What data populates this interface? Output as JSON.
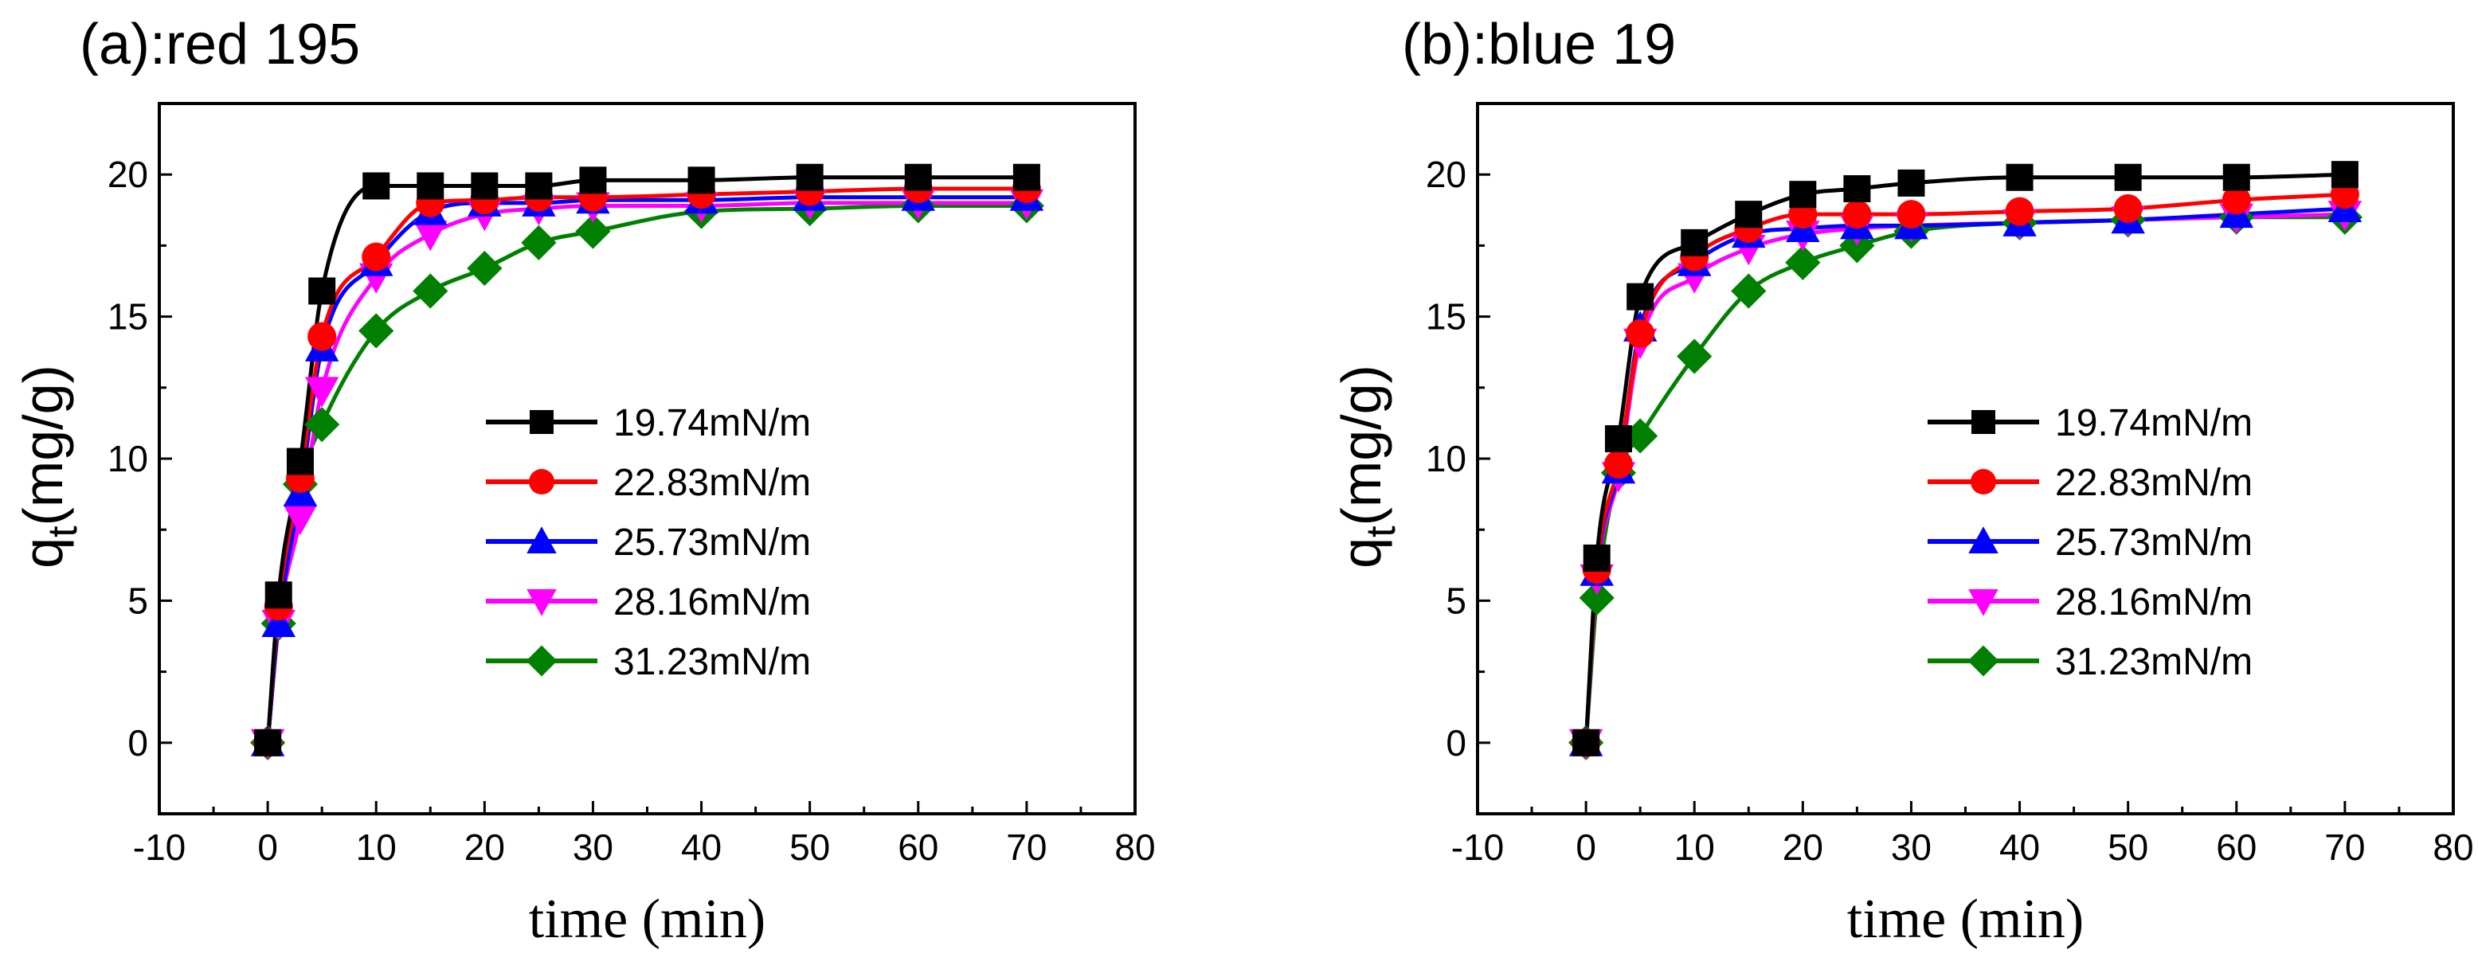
{
  "chart_data": [
    {
      "type": "line",
      "title": "(a):red 195",
      "xlabel": "time (min)",
      "ylabel": {
        "main": "q",
        "subscript": "t",
        "unit": "(mg/g)"
      },
      "xlim": [
        -10,
        80
      ],
      "ylim": [
        -2.5,
        22.5
      ],
      "xticks": [
        -10,
        0,
        10,
        20,
        30,
        40,
        50,
        60,
        70,
        80
      ],
      "yticks": [
        0,
        5,
        10,
        15,
        20
      ],
      "legend_position": "center-right",
      "x": [
        0,
        1,
        3,
        5,
        10,
        15,
        20,
        25,
        30,
        40,
        50,
        60,
        70
      ],
      "series": [
        {
          "name": "19.74mN/m",
          "color": "#000000",
          "marker": "square",
          "values": [
            0,
            5.2,
            9.9,
            15.9,
            19.6,
            19.6,
            19.6,
            19.6,
            19.8,
            19.8,
            19.9,
            19.9,
            19.9
          ]
        },
        {
          "name": "22.83mN/m",
          "color": "#ff0000",
          "marker": "circle",
          "values": [
            0,
            4.8,
            9.3,
            14.3,
            17.1,
            19.0,
            19.1,
            19.2,
            19.2,
            19.3,
            19.4,
            19.5,
            19.5
          ]
        },
        {
          "name": "25.73mN/m",
          "color": "#0000ff",
          "marker": "triangle-up",
          "values": [
            0,
            4.2,
            8.8,
            13.9,
            16.9,
            18.7,
            19.0,
            19.0,
            19.1,
            19.1,
            19.2,
            19.2,
            19.2
          ]
        },
        {
          "name": "28.16mN/m",
          "color": "#ff00ff",
          "marker": "triangle-down",
          "values": [
            0,
            4.2,
            7.9,
            12.4,
            16.4,
            17.9,
            18.6,
            18.8,
            18.9,
            18.9,
            19.0,
            19.0,
            19.0
          ]
        },
        {
          "name": "31.23mN/m",
          "color": "#008000",
          "marker": "diamond",
          "values": [
            0,
            4.2,
            9.1,
            11.2,
            14.5,
            15.9,
            16.7,
            17.6,
            18.0,
            18.7,
            18.8,
            18.9,
            18.9
          ]
        }
      ]
    },
    {
      "type": "line",
      "title": "(b):blue 19",
      "xlabel": "time (min)",
      "ylabel": {
        "main": "q",
        "subscript": "t",
        "unit": "(mg/g)"
      },
      "xlim": [
        -10,
        80
      ],
      "ylim": [
        -2.5,
        22.5
      ],
      "xticks": [
        -10,
        0,
        10,
        20,
        30,
        40,
        50,
        60,
        70,
        80
      ],
      "yticks": [
        0,
        5,
        10,
        15,
        20
      ],
      "legend_position": "center-right",
      "x": [
        0,
        1,
        3,
        5,
        10,
        15,
        20,
        25,
        30,
        40,
        50,
        60,
        70
      ],
      "series": [
        {
          "name": "19.74mN/m",
          "color": "#000000",
          "marker": "square",
          "values": [
            0,
            6.5,
            10.7,
            15.7,
            17.6,
            18.6,
            19.3,
            19.5,
            19.7,
            19.9,
            19.9,
            19.9,
            20.0
          ]
        },
        {
          "name": "22.83mN/m",
          "color": "#ff0000",
          "marker": "circle",
          "values": [
            0,
            6.1,
            9.8,
            14.4,
            17.1,
            18.1,
            18.6,
            18.6,
            18.6,
            18.7,
            18.8,
            19.1,
            19.3
          ]
        },
        {
          "name": "25.73mN/m",
          "color": "#0000ff",
          "marker": "triangle-up",
          "values": [
            0,
            6.0,
            9.6,
            14.6,
            16.9,
            17.9,
            18.1,
            18.2,
            18.2,
            18.3,
            18.4,
            18.6,
            18.8
          ]
        },
        {
          "name": "28.16mN/m",
          "color": "#ff00ff",
          "marker": "triangle-down",
          "values": [
            0,
            5.8,
            9.4,
            14.1,
            16.4,
            17.4,
            17.9,
            18.1,
            18.2,
            18.3,
            18.4,
            18.5,
            18.6
          ]
        },
        {
          "name": "31.23mN/m",
          "color": "#008000",
          "marker": "diamond",
          "values": [
            0,
            5.1,
            9.5,
            10.8,
            13.6,
            15.9,
            16.9,
            17.5,
            18.0,
            18.3,
            18.4,
            18.5,
            18.5
          ]
        }
      ]
    }
  ]
}
